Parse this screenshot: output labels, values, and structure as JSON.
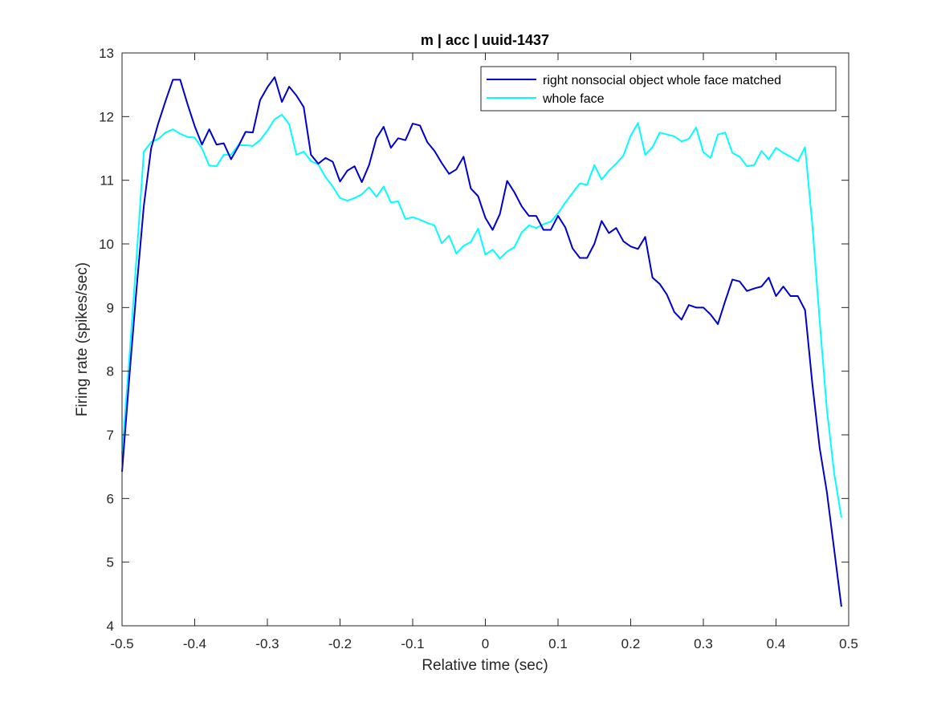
{
  "chart_data": {
    "type": "line",
    "title": "m | acc | uuid-1437",
    "xlabel": "Relative time (sec)",
    "ylabel": "Firing rate (spikes/sec)",
    "xlim": [
      -0.5,
      0.5
    ],
    "ylim": [
      4,
      13
    ],
    "xticks": [
      -0.5,
      -0.4,
      -0.3,
      -0.2,
      -0.1,
      0,
      0.1,
      0.2,
      0.3,
      0.4,
      0.5
    ],
    "xtick_labels": [
      "-0.5",
      "-0.4",
      "-0.3",
      "-0.2",
      "-0.1",
      "0",
      "0.1",
      "0.2",
      "0.3",
      "0.4",
      "0.5"
    ],
    "yticks": [
      4,
      5,
      6,
      7,
      8,
      9,
      10,
      11,
      12,
      13
    ],
    "ytick_labels": [
      "4",
      "5",
      "6",
      "7",
      "8",
      "9",
      "10",
      "11",
      "12",
      "13"
    ],
    "legend_position": "top-right",
    "grid": false,
    "series": [
      {
        "name": "right nonsocial object whole face matched",
        "color": "#0000cd",
        "x": [
          -0.5,
          -0.49,
          -0.48,
          -0.47,
          -0.46,
          -0.45,
          -0.44,
          -0.43,
          -0.42,
          -0.41,
          -0.4,
          -0.39,
          -0.38,
          -0.37,
          -0.36,
          -0.35,
          -0.34,
          -0.33,
          -0.32,
          -0.31,
          -0.3,
          -0.29,
          -0.28,
          -0.27,
          -0.26,
          -0.25,
          -0.24,
          -0.23,
          -0.22,
          -0.21,
          -0.2,
          -0.19,
          -0.18,
          -0.17,
          -0.16,
          -0.15,
          -0.14,
          -0.13,
          -0.12,
          -0.11,
          -0.1,
          -0.09,
          -0.08,
          -0.07,
          -0.06,
          -0.05,
          -0.04,
          -0.03,
          -0.02,
          -0.01,
          0,
          0.01,
          0.02,
          0.03,
          0.04,
          0.05,
          0.06,
          0.07,
          0.08,
          0.09,
          0.1,
          0.11,
          0.12,
          0.13,
          0.14,
          0.15,
          0.16,
          0.17,
          0.18,
          0.19,
          0.2,
          0.21,
          0.22,
          0.23,
          0.24,
          0.25,
          0.26,
          0.27,
          0.28,
          0.29,
          0.3,
          0.31,
          0.32,
          0.33,
          0.34,
          0.35,
          0.36,
          0.37,
          0.38,
          0.39,
          0.4,
          0.41,
          0.42,
          0.43,
          0.44,
          0.45,
          0.46,
          0.47,
          0.48,
          0.49
        ],
        "values": [
          6.42,
          7.9,
          9.3,
          10.6,
          11.5,
          11.9,
          12.25,
          12.58,
          12.58,
          12.2,
          11.85,
          11.56,
          11.8,
          11.56,
          11.58,
          11.33,
          11.53,
          11.76,
          11.75,
          12.26,
          12.46,
          12.62,
          12.23,
          12.47,
          12.33,
          12.15,
          11.4,
          11.26,
          11.35,
          11.29,
          10.98,
          11.15,
          11.22,
          10.97,
          11.24,
          11.66,
          11.84,
          11.51,
          11.66,
          11.63,
          11.89,
          11.86,
          11.6,
          11.46,
          11.27,
          11.1,
          11.17,
          11.37,
          10.87,
          10.75,
          10.41,
          10.22,
          10.47,
          10.99,
          10.81,
          10.59,
          10.44,
          10.44,
          10.22,
          10.22,
          10.44,
          10.26,
          9.93,
          9.78,
          9.78,
          10.0,
          10.36,
          10.17,
          10.25,
          10.04,
          9.96,
          9.92,
          10.11,
          9.47,
          9.37,
          9.2,
          8.93,
          8.81,
          9.04,
          9.0,
          9.0,
          8.89,
          8.74,
          9.1,
          9.44,
          9.41,
          9.26,
          9.3,
          9.33,
          9.47,
          9.18,
          9.33,
          9.18,
          9.18,
          8.96,
          7.8,
          6.8,
          6.1,
          5.2,
          4.3
        ]
      },
      {
        "name": "whole face",
        "color": "#00ffff",
        "x": [
          -0.5,
          -0.49,
          -0.48,
          -0.47,
          -0.46,
          -0.45,
          -0.44,
          -0.43,
          -0.42,
          -0.41,
          -0.4,
          -0.39,
          -0.38,
          -0.37,
          -0.36,
          -0.35,
          -0.34,
          -0.33,
          -0.32,
          -0.31,
          -0.3,
          -0.29,
          -0.28,
          -0.27,
          -0.26,
          -0.25,
          -0.24,
          -0.23,
          -0.22,
          -0.21,
          -0.2,
          -0.19,
          -0.18,
          -0.17,
          -0.16,
          -0.15,
          -0.14,
          -0.13,
          -0.12,
          -0.11,
          -0.1,
          -0.09,
          -0.08,
          -0.07,
          -0.06,
          -0.05,
          -0.04,
          -0.03,
          -0.02,
          -0.01,
          0,
          0.01,
          0.02,
          0.03,
          0.04,
          0.05,
          0.06,
          0.07,
          0.08,
          0.09,
          0.1,
          0.11,
          0.12,
          0.13,
          0.14,
          0.15,
          0.16,
          0.17,
          0.18,
          0.19,
          0.2,
          0.21,
          0.22,
          0.23,
          0.24,
          0.25,
          0.26,
          0.27,
          0.28,
          0.29,
          0.3,
          0.31,
          0.32,
          0.33,
          0.34,
          0.35,
          0.36,
          0.37,
          0.38,
          0.39,
          0.4,
          0.41,
          0.42,
          0.43,
          0.44,
          0.45,
          0.46,
          0.47,
          0.48,
          0.49
        ],
        "values": [
          6.7,
          8.2,
          9.8,
          11.45,
          11.6,
          11.65,
          11.75,
          11.8,
          11.73,
          11.68,
          11.67,
          11.5,
          11.23,
          11.22,
          11.4,
          11.4,
          11.55,
          11.55,
          11.54,
          11.63,
          11.78,
          11.96,
          12.03,
          11.88,
          11.4,
          11.45,
          11.3,
          11.25,
          11.05,
          10.9,
          10.72,
          10.68,
          10.72,
          10.78,
          10.89,
          10.74,
          10.9,
          10.65,
          10.67,
          10.39,
          10.42,
          10.38,
          10.33,
          10.29,
          10.01,
          10.13,
          9.85,
          9.97,
          10.03,
          10.24,
          9.83,
          9.91,
          9.77,
          9.88,
          9.95,
          10.18,
          10.29,
          10.25,
          10.31,
          10.35,
          10.48,
          10.65,
          10.8,
          10.95,
          10.93,
          11.24,
          11.01,
          11.15,
          11.26,
          11.39,
          11.7,
          11.9,
          11.4,
          11.52,
          11.75,
          11.72,
          11.69,
          11.61,
          11.65,
          11.83,
          11.44,
          11.35,
          11.72,
          11.75,
          11.43,
          11.37,
          11.22,
          11.24,
          11.46,
          11.33,
          11.51,
          11.43,
          11.37,
          11.3,
          11.52,
          10.3,
          8.8,
          7.4,
          6.4,
          5.7
        ]
      }
    ]
  }
}
